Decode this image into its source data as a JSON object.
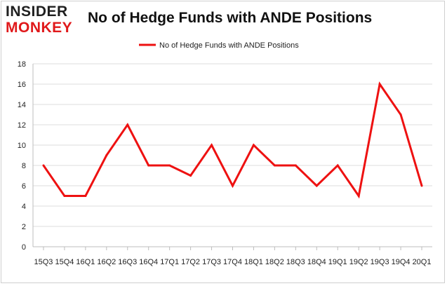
{
  "logo": {
    "line1": "INSIDER",
    "line2": "MONKEY"
  },
  "chart_data": {
    "type": "line",
    "title": "No of Hedge Funds with ANDE Positions",
    "categories": [
      "15Q3",
      "15Q4",
      "16Q1",
      "16Q2",
      "16Q3",
      "16Q4",
      "17Q1",
      "17Q2",
      "17Q3",
      "17Q4",
      "18Q1",
      "18Q2",
      "18Q3",
      "18Q4",
      "19Q1",
      "19Q2",
      "19Q3",
      "19Q4",
      "20Q1"
    ],
    "series": [
      {
        "name": "No of Hedge Funds with ANDE Positions",
        "values": [
          8,
          5,
          5,
          9,
          12,
          8,
          8,
          7,
          10,
          6,
          10,
          8,
          8,
          6,
          8,
          5,
          16,
          13,
          6
        ],
        "color": "#ee1111"
      }
    ],
    "ylim": [
      0,
      18
    ],
    "yticks": [
      0,
      2,
      4,
      6,
      8,
      10,
      12,
      14,
      16,
      18
    ],
    "grid": true,
    "legend": "top"
  }
}
